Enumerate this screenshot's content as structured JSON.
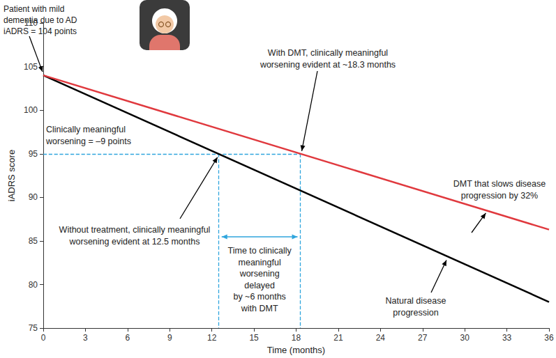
{
  "chart_data": {
    "type": "line",
    "xlabel": "Time (months)",
    "ylabel": "iADRS score",
    "x": [
      0,
      36
    ],
    "xlim": [
      0,
      36
    ],
    "ylim": [
      75,
      110
    ],
    "xticks": [
      0,
      3,
      6,
      9,
      12,
      15,
      18,
      21,
      24,
      27,
      30,
      33,
      36
    ],
    "yticks": [
      75,
      80,
      85,
      90,
      95,
      100,
      105,
      110
    ],
    "grid": false,
    "series": [
      {
        "name": "Natural disease\nprogression",
        "color": "#000000",
        "values": [
          104,
          78
        ]
      },
      {
        "name": "DMT that slows disease\nprogression by 32%",
        "color": "#e0393e",
        "values": [
          104,
          86.3
        ]
      }
    ],
    "threshold": {
      "value": 95,
      "crossings": [
        12.5,
        18.3
      ],
      "color": "#2fa5dd",
      "line_style": "dashed"
    },
    "annotations": {
      "patient": "Patient with mild\ndementia due to AD\niADRS = 104 points",
      "threshold": "Clinically meaningful\nworsening = –9 points",
      "dmt_crossing": "With DMT, clinically meaningful\nworsening evident at ~18.3 months",
      "natural_crossing": "Without treatment, clinically meaningful\nworsening evident at 12.5 months",
      "delay": "Time to clinically\nmeaningful\nworsening\ndelayed\nby ~6 months\nwith DMT"
    }
  }
}
